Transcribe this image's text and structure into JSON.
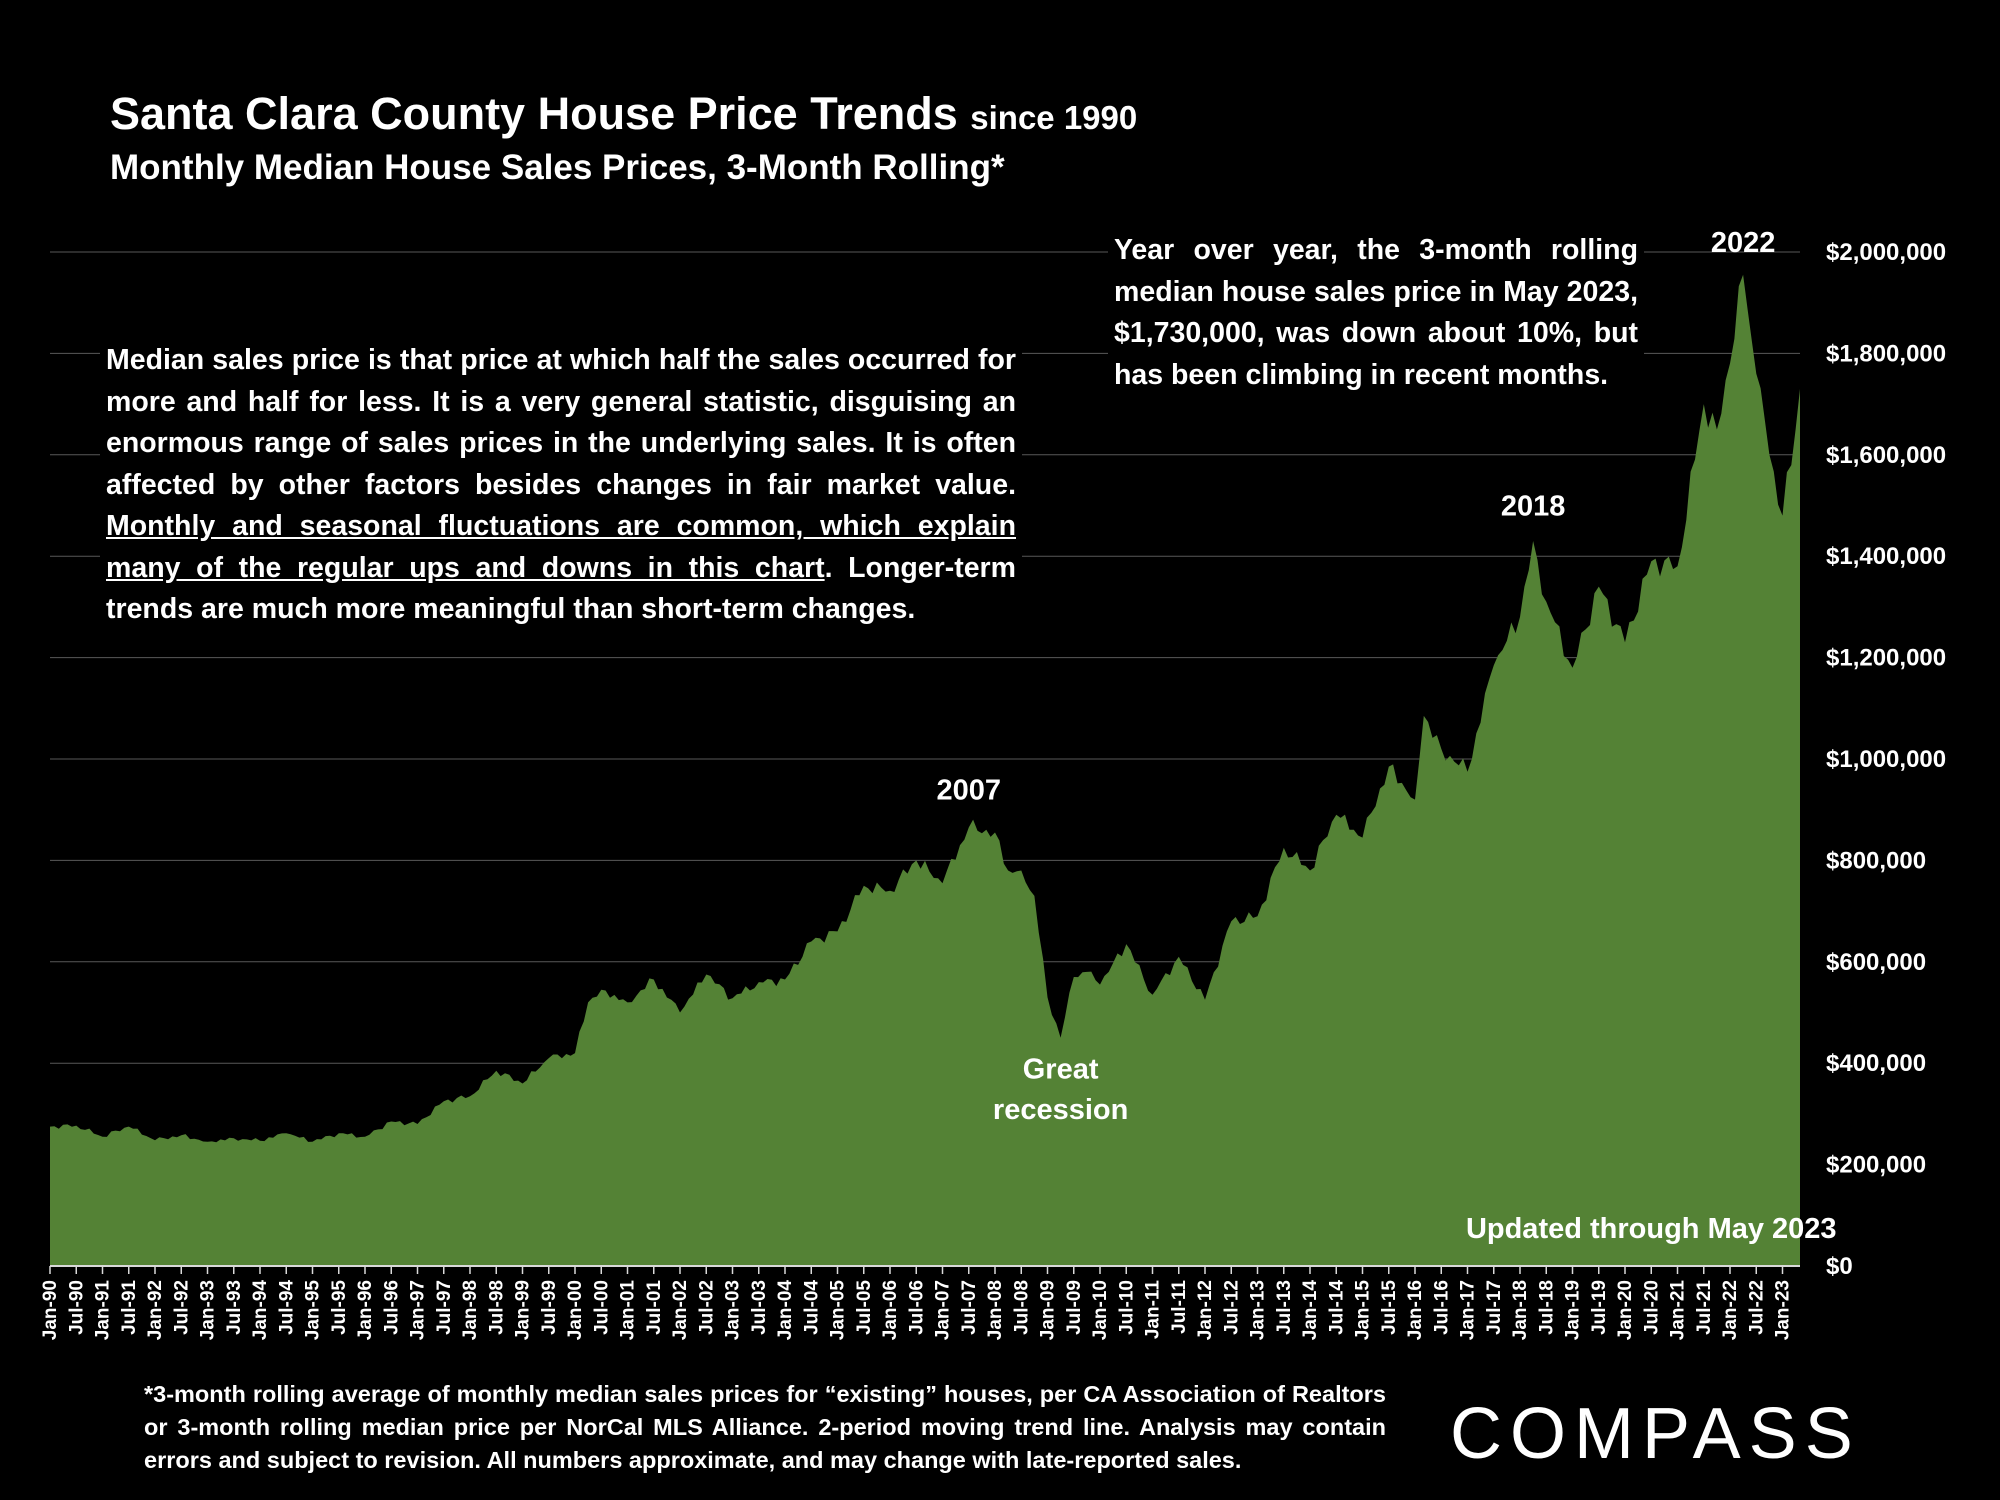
{
  "header": {
    "title": "Santa Clara County House Price Trends",
    "title_suffix": "since 1990",
    "subtitle": "Monthly Median House Sales Prices, 3-Month Rolling*"
  },
  "notes": {
    "left_part1": "Median sales price is that price at which half the sales occurred for more and half for less. It is a very general statistic, disguising an enormous range of sales prices in the underlying sales. It is often affected by other factors besides changes in fair market value. ",
    "left_underlined": "Monthly and seasonal fluctuations are common, which explain many of the regular ups and downs in this chart",
    "left_part2": ". Longer-term trends are much more meaningful than short-term changes.",
    "right": "Year over year, the 3-month rolling median house sales price in May 2023, $1,730,000, was down about 10%, but has been climbing in recent months."
  },
  "footnote": "*3-month rolling average of monthly median sales prices for “existing” houses, per CA Association of Realtors or 3-month rolling median price per NorCal MLS Alliance. 2-period moving trend line. Analysis may contain errors and subject to revision. All numbers approximate, and may change with late-reported sales.",
  "logo": {
    "text": "COMPASS"
  },
  "colors": {
    "area": "#548235",
    "background": "#000000",
    "grid": "#595959",
    "text": "#ffffff"
  },
  "chart_data": {
    "type": "area",
    "title": "Santa Clara County House Price Trends since 1990",
    "subtitle": "Monthly Median House Sales Prices, 3-Month Rolling*",
    "x_start": "Jan-90",
    "x_end": "May-23",
    "x_ticks": [
      "Jan-90",
      "Jul-90",
      "Jan-91",
      "Jul-91",
      "Jan-92",
      "Jul-92",
      "Jan-93",
      "Jul-93",
      "Jan-94",
      "Jul-94",
      "Jan-95",
      "Jul-95",
      "Jan-96",
      "Jul-96",
      "Jan-97",
      "Jul-97",
      "Jan-98",
      "Jul-98",
      "Jan-99",
      "Jul-99",
      "Jan-00",
      "Jul-00",
      "Jan-01",
      "Jul-01",
      "Jan-02",
      "Jul-02",
      "Jan-03",
      "Jul-03",
      "Jan-04",
      "Jul-04",
      "Jan-05",
      "Jul-05",
      "Jan-06",
      "Jul-06",
      "Jan-07",
      "Jul-07",
      "Jan-08",
      "Jul-08",
      "Jan-09",
      "Jul-09",
      "Jan-10",
      "Jul-10",
      "Jan-11",
      "Jul-11",
      "Jan-12",
      "Jul-12",
      "Jan-13",
      "Jul-13",
      "Jan-14",
      "Jul-14",
      "Jan-15",
      "Jul-15",
      "Jan-16",
      "Jul-16",
      "Jan-17",
      "Jul-17",
      "Jan-18",
      "Jul-18",
      "Jan-19",
      "Jul-19",
      "Jan-20",
      "Jul-20",
      "Jan-21",
      "Jul-21",
      "Jan-22",
      "Jul-22",
      "Jan-23"
    ],
    "y_ticks": [
      "$0",
      "$200,000",
      "$400,000",
      "$600,000",
      "$800,000",
      "$1,000,000",
      "$1,200,000",
      "$1,400,000",
      "$1,600,000",
      "$1,800,000",
      "$2,000,000"
    ],
    "ylim": [
      0,
      2000000
    ],
    "y_axis_side": "right",
    "grid": true,
    "series": [
      {
        "points": [
          [
            "Jan-90",
            275000
          ],
          [
            "Jul-90",
            277000
          ],
          [
            "Jan-91",
            255000
          ],
          [
            "Jul-91",
            275000
          ],
          [
            "Jan-92",
            248000
          ],
          [
            "Jul-92",
            258000
          ],
          [
            "Jan-93",
            245000
          ],
          [
            "Jul-93",
            252000
          ],
          [
            "Jan-94",
            247000
          ],
          [
            "Jul-94",
            262000
          ],
          [
            "Jan-95",
            245000
          ],
          [
            "Jul-95",
            262000
          ],
          [
            "Jan-96",
            255000
          ],
          [
            "Jul-96",
            285000
          ],
          [
            "Jan-97",
            280000
          ],
          [
            "Jul-97",
            325000
          ],
          [
            "Jan-98",
            335000
          ],
          [
            "Jul-98",
            385000
          ],
          [
            "Jan-99",
            360000
          ],
          [
            "Jul-99",
            410000
          ],
          [
            "Jan-00",
            420000
          ],
          [
            "Apr-00",
            520000
          ],
          [
            "Jul-00",
            545000
          ],
          [
            "Jan-01",
            520000
          ],
          [
            "Jul-01",
            565000
          ],
          [
            "Jan-02",
            500000
          ],
          [
            "Jul-02",
            575000
          ],
          [
            "Jan-03",
            528000
          ],
          [
            "Jul-03",
            560000
          ],
          [
            "Jan-04",
            565000
          ],
          [
            "Jul-04",
            640000
          ],
          [
            "Jan-05",
            660000
          ],
          [
            "Jul-05",
            750000
          ],
          [
            "Jan-06",
            740000
          ],
          [
            "Jul-06",
            800000
          ],
          [
            "Jan-07",
            755000
          ],
          [
            "Jul-07",
            865000
          ],
          [
            "Jan-08",
            855000
          ],
          [
            "Apr-08",
            780000
          ],
          [
            "Jul-08",
            780000
          ],
          [
            "Oct-08",
            730000
          ],
          [
            "Jan-09",
            530000
          ],
          [
            "Apr-09",
            450000
          ],
          [
            "Jul-09",
            570000
          ],
          [
            "Oct-09",
            580000
          ],
          [
            "Jan-10",
            555000
          ],
          [
            "Jul-10",
            635000
          ],
          [
            "Jan-11",
            535000
          ],
          [
            "Jul-11",
            610000
          ],
          [
            "Jan-12",
            525000
          ],
          [
            "Jul-12",
            680000
          ],
          [
            "Jan-13",
            690000
          ],
          [
            "Jul-13",
            825000
          ],
          [
            "Jan-14",
            780000
          ],
          [
            "Jul-14",
            890000
          ],
          [
            "Jan-15",
            845000
          ],
          [
            "Jul-15",
            985000
          ],
          [
            "Jan-16",
            920000
          ],
          [
            "Mar-16",
            1085000
          ],
          [
            "Jul-16",
            1020000
          ],
          [
            "Jan-17",
            975000
          ],
          [
            "Jul-17",
            1185000
          ],
          [
            "Jan-18",
            1280000
          ],
          [
            "Apr-18",
            1430000
          ],
          [
            "Jul-18",
            1310000
          ],
          [
            "Jan-19",
            1180000
          ],
          [
            "Jul-19",
            1340000
          ],
          [
            "Jan-20",
            1230000
          ],
          [
            "Jul-20",
            1390000
          ],
          [
            "Jan-21",
            1380000
          ],
          [
            "Jul-21",
            1700000
          ],
          [
            "Oct-21",
            1650000
          ],
          [
            "Jan-22",
            1780000
          ],
          [
            "Apr-22",
            1955000
          ],
          [
            "Jul-22",
            1760000
          ],
          [
            "Oct-22",
            1600000
          ],
          [
            "Jan-23",
            1480000
          ],
          [
            "Apr-23",
            1650000
          ],
          [
            "May-23",
            1730000
          ]
        ]
      }
    ],
    "annotations": [
      {
        "text": "2007",
        "x": "Jul-07",
        "y": 920000
      },
      {
        "text": "Great",
        "x": "Apr-09",
        "y": 370000
      },
      {
        "text": "recession",
        "x": "Apr-09",
        "y": 290000
      },
      {
        "text": "2018",
        "x": "Apr-18",
        "y": 1480000
      },
      {
        "text": "2022",
        "x": "Apr-22",
        "y": 2000000
      },
      {
        "text": "Updated through May 2023",
        "x": "Jul-20",
        "y": 55000
      }
    ]
  }
}
